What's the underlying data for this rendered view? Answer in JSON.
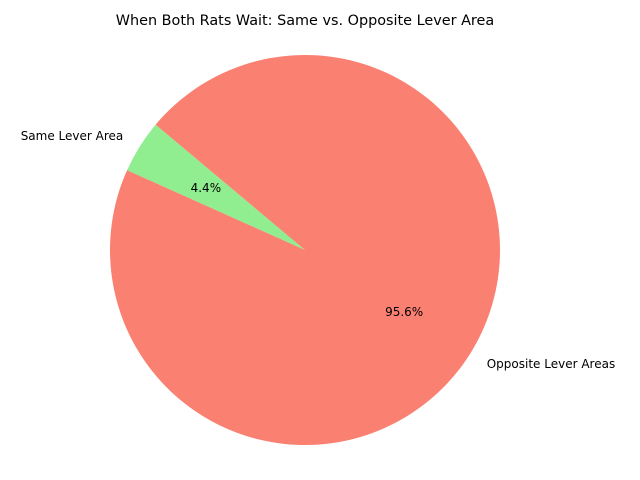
{
  "chart_data": {
    "type": "pie",
    "title": "When Both Rats Wait: Same vs. Opposite Lever Area",
    "slices": [
      {
        "label": "Same Lever Area",
        "value": 4.4,
        "pct_label": "4.4%",
        "color": "#90ee90"
      },
      {
        "label": "Opposite Lever Areas",
        "value": 95.6,
        "pct_label": "95.6%",
        "color": "#fa8072"
      }
    ],
    "start_angle_deg": 140,
    "direction": "counterclockwise"
  }
}
